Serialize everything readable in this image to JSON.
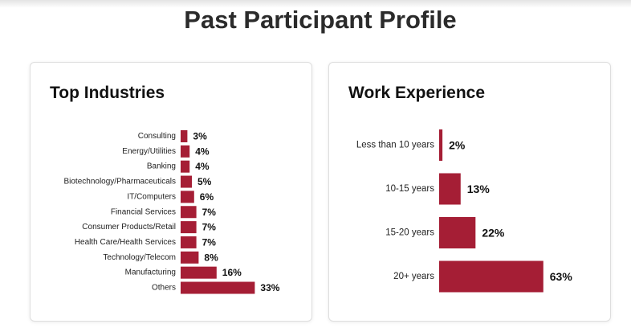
{
  "page": {
    "title": "Past Participant Profile"
  },
  "colors": {
    "bar": "#a51e35",
    "text": "#222222"
  },
  "industries": {
    "title": "Top Industries"
  },
  "experience": {
    "title": "Work Experience"
  },
  "chart_data": [
    {
      "type": "bar",
      "orientation": "horizontal",
      "title": "Top Industries",
      "categories": [
        "Consulting",
        "Energy/Utilities",
        "Banking",
        "Biotechnology/Pharmaceuticals",
        "IT/Computers",
        "Financial Services",
        "Consumer Products/Retail",
        "Health Care/Health Services",
        "Technology/Telecom",
        "Manufacturing",
        "Others"
      ],
      "values": [
        3,
        4,
        4,
        5,
        6,
        7,
        7,
        7,
        8,
        16,
        33
      ],
      "value_labels": [
        "3%",
        "4%",
        "4%",
        "5%",
        "6%",
        "7%",
        "7%",
        "7%",
        "8%",
        "16%",
        "33%"
      ],
      "unit": "%"
    },
    {
      "type": "bar",
      "orientation": "horizontal",
      "title": "Work Experience",
      "categories": [
        "Less than 10 years",
        "10-15 years",
        "15-20 years",
        "20+ years"
      ],
      "values": [
        2,
        13,
        22,
        63
      ],
      "value_labels": [
        "2%",
        "13%",
        "22%",
        "63%"
      ],
      "unit": "%"
    }
  ]
}
